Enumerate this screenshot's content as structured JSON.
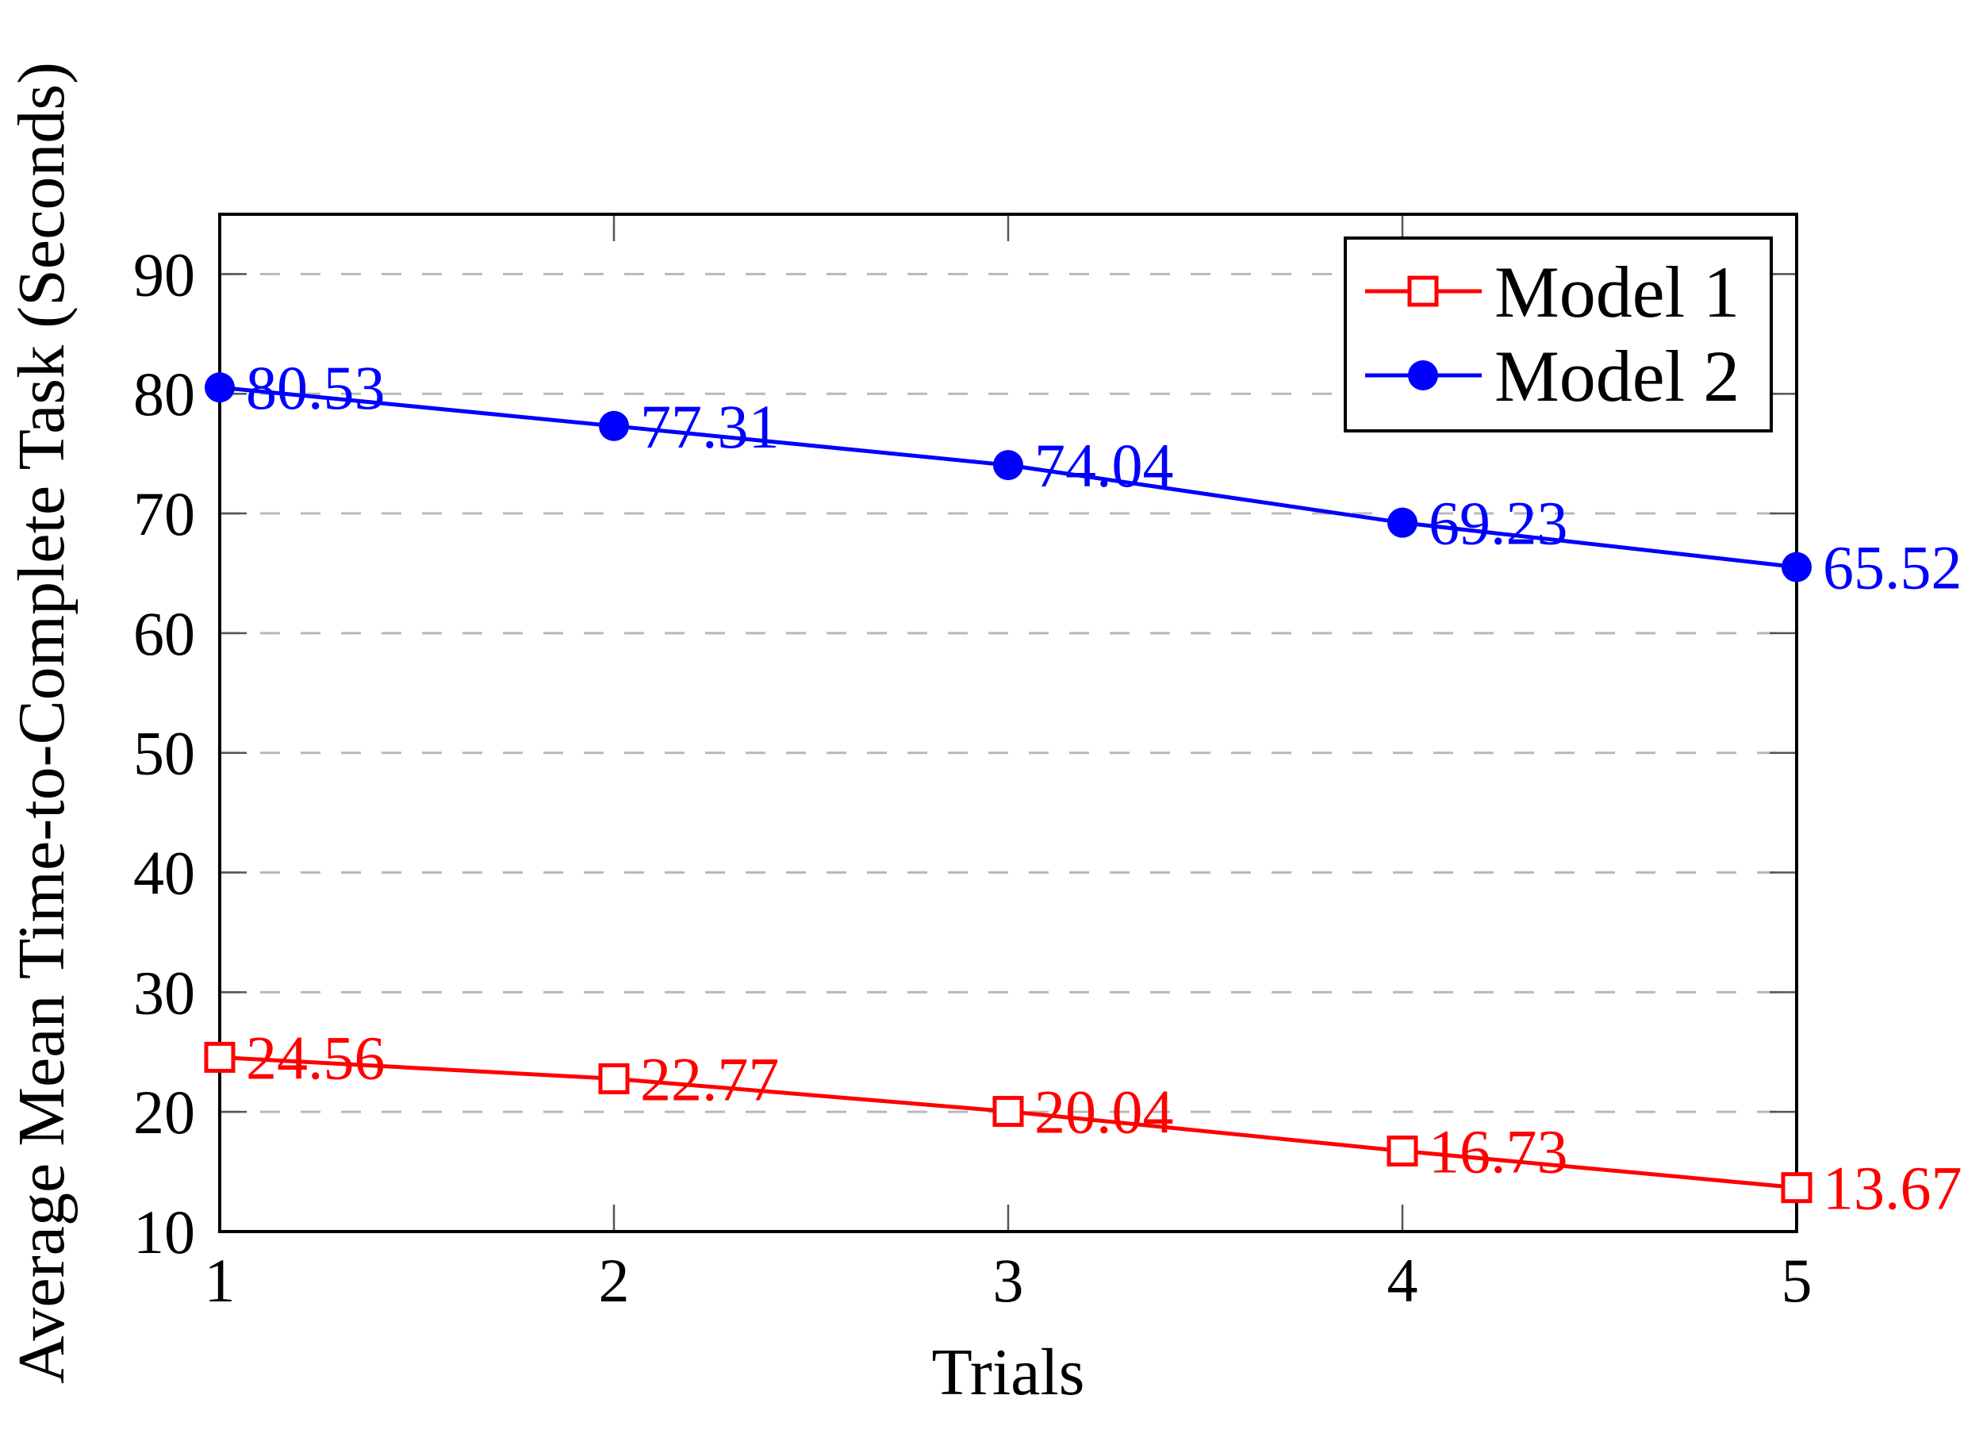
{
  "chart_data": {
    "type": "line",
    "title": "",
    "xlabel": "Trials",
    "ylabel": "Average Mean Time-to-Complete Task (Seconds)",
    "x": [
      1,
      2,
      3,
      4,
      5
    ],
    "xlim": [
      1,
      5
    ],
    "ylim": [
      10,
      95
    ],
    "xticks": [
      1,
      2,
      3,
      4,
      5
    ],
    "yticks": [
      10,
      20,
      30,
      40,
      50,
      60,
      70,
      80,
      90
    ],
    "grid": "horizontal-dashed",
    "legend_position": "top-right",
    "series": [
      {
        "name": "Model 1",
        "color": "#ff0000",
        "marker": "open-square",
        "values": [
          24.56,
          22.77,
          20.04,
          16.73,
          13.67
        ],
        "labels": [
          "24.56",
          "22.77",
          "20.04",
          "16.73",
          "13.67"
        ]
      },
      {
        "name": "Model 2",
        "color": "#0000ff",
        "marker": "filled-circle",
        "values": [
          80.53,
          77.31,
          74.04,
          69.23,
          65.52
        ],
        "labels": [
          "80.53",
          "77.31",
          "74.04",
          "69.23",
          "65.52"
        ]
      }
    ]
  },
  "colors": {
    "background": "#ffffff",
    "frame": "#000000",
    "grid": "#b9b9b9",
    "tick": "#555555",
    "text": "#000000"
  }
}
